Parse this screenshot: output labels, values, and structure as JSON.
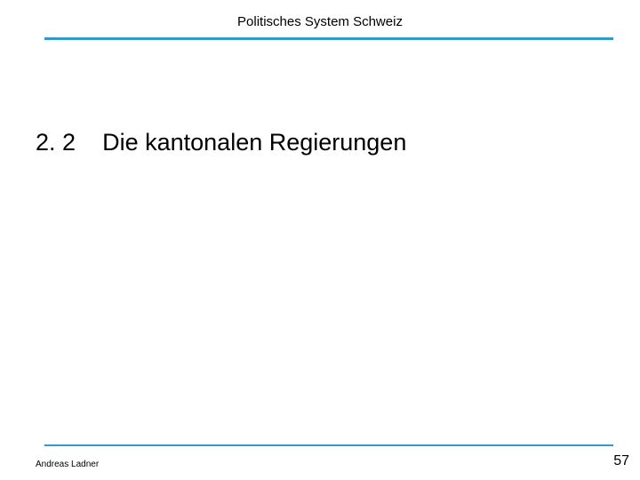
{
  "header": {
    "title": "Politisches System Schweiz",
    "title_fontsize": 15,
    "rule_color": "#3399cc",
    "rule_thickness": 3
  },
  "section": {
    "number": "2. 2",
    "title": "Die kantonalen Regierungen",
    "fontsize": 27,
    "color": "#000000"
  },
  "footer": {
    "author": "Andreas Ladner",
    "author_fontsize": 10,
    "page_number": "57",
    "page_number_fontsize": 16,
    "rule_color": "#3399cc",
    "rule_thickness": 2
  },
  "background_color": "#ffffff"
}
